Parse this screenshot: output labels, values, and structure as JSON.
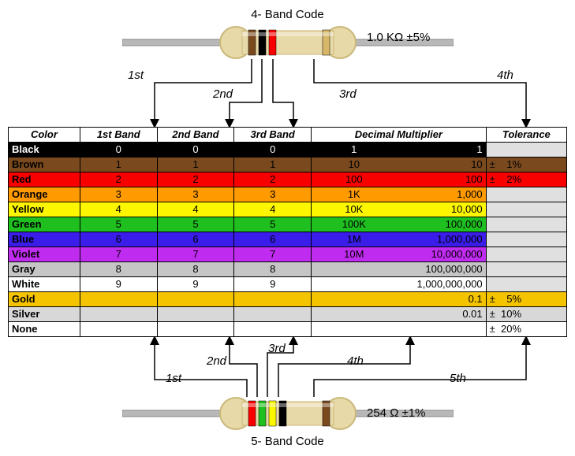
{
  "top_title": "4- Band Code",
  "bottom_title": "5- Band Code",
  "top_value": "1.0 KΩ  ±5%",
  "bottom_value": "254 Ω  ±1%",
  "labels_top": {
    "b1": "1st",
    "b2": "2nd",
    "b3": "3rd",
    "b4": "4th"
  },
  "labels_bot": {
    "b1": "1st",
    "b2": "2nd",
    "b3": "3rd",
    "b4": "4th",
    "b5": "5th"
  },
  "headers": [
    "Color",
    "1st Band",
    "2nd Band",
    "3rd Band",
    "Decimal Multiplier",
    "Tolerance"
  ],
  "rows": [
    {
      "name": "Black",
      "bg": "#000000",
      "fg": "#ffffff",
      "d1": "0",
      "d2": "0",
      "d3": "0",
      "ml": "1",
      "mr": "1",
      "tol": "",
      "tolbg": "#e0e0e0"
    },
    {
      "name": "Brown",
      "bg": "#7a4a1e",
      "fg": "#000000",
      "d1": "1",
      "d2": "1",
      "d3": "1",
      "ml": "10",
      "mr": "10",
      "tol": "±    1%",
      "tolbg": "#7a4a1e"
    },
    {
      "name": "Red",
      "bg": "#f80000",
      "fg": "#000000",
      "d1": "2",
      "d2": "2",
      "d3": "2",
      "ml": "100",
      "mr": "100",
      "tol": "±    2%",
      "tolbg": "#f80000"
    },
    {
      "name": "Orange",
      "bg": "#ff9a00",
      "fg": "#000000",
      "d1": "3",
      "d2": "3",
      "d3": "3",
      "ml": "1K",
      "mr": "1,000",
      "tol": "",
      "tolbg": "#e0e0e0"
    },
    {
      "name": "Yellow",
      "bg": "#fcf600",
      "fg": "#000000",
      "d1": "4",
      "d2": "4",
      "d3": "4",
      "ml": "10K",
      "mr": "10,000",
      "tol": "",
      "tolbg": "#e0e0e0"
    },
    {
      "name": "Green",
      "bg": "#1fbf1f",
      "fg": "#000000",
      "d1": "5",
      "d2": "5",
      "d3": "5",
      "ml": "100K",
      "mr": "100,000",
      "tol": "",
      "tolbg": "#e0e0e0"
    },
    {
      "name": "Blue",
      "bg": "#3a1de8",
      "fg": "#000000",
      "d1": "6",
      "d2": "6",
      "d3": "6",
      "ml": "1M",
      "mr": "1,000,000",
      "tol": "",
      "tolbg": "#e0e0e0"
    },
    {
      "name": "Violet",
      "bg": "#c02bf0",
      "fg": "#000000",
      "d1": "7",
      "d2": "7",
      "d3": "7",
      "ml": "10M",
      "mr": "10,000,000",
      "tol": "",
      "tolbg": "#e0e0e0"
    },
    {
      "name": "Gray",
      "bg": "#c5c5c5",
      "fg": "#000000",
      "d1": "8",
      "d2": "8",
      "d3": "8",
      "ml": "",
      "mr": "100,000,000",
      "tol": "",
      "tolbg": "#e0e0e0"
    },
    {
      "name": "White",
      "bg": "#ffffff",
      "fg": "#000000",
      "d1": "9",
      "d2": "9",
      "d3": "9",
      "ml": "",
      "mr": "1,000,000,000",
      "tol": "",
      "tolbg": "#e0e0e0"
    },
    {
      "name": "Gold",
      "bg": "#f4c400",
      "fg": "#000000",
      "d1": "",
      "d2": "",
      "d3": "",
      "ml": "",
      "mr": "0.1",
      "tol": "±    5%",
      "tolbg": "#f4c400"
    },
    {
      "name": "Silver",
      "bg": "#d8d8d8",
      "fg": "#000000",
      "d1": "",
      "d2": "",
      "d3": "",
      "ml": "",
      "mr": "0.01",
      "tol": "±  10%",
      "tolbg": "#d8d8d8"
    },
    {
      "name": "None",
      "bg": "#ffffff",
      "fg": "#000000",
      "d1": "",
      "d2": "",
      "d3": "",
      "ml": "",
      "mr": "",
      "tol": "±  20%",
      "tolbg": "#ffffff"
    }
  ],
  "col_widths": {
    "color": 80,
    "band": 86,
    "mult": 195,
    "tol": 90
  },
  "resistor_top_bands": [
    "#7a4a1e",
    "#000000",
    "#f80000",
    "#d8b868"
  ],
  "resistor_bot_bands": [
    "#f80000",
    "#1fbf1f",
    "#fcf600",
    "#000000",
    "#7a4a1e"
  ],
  "resistor_body": "#e8d9a8",
  "resistor_body_dark": "#c9b77a",
  "lead_color": "#b8b8b8"
}
